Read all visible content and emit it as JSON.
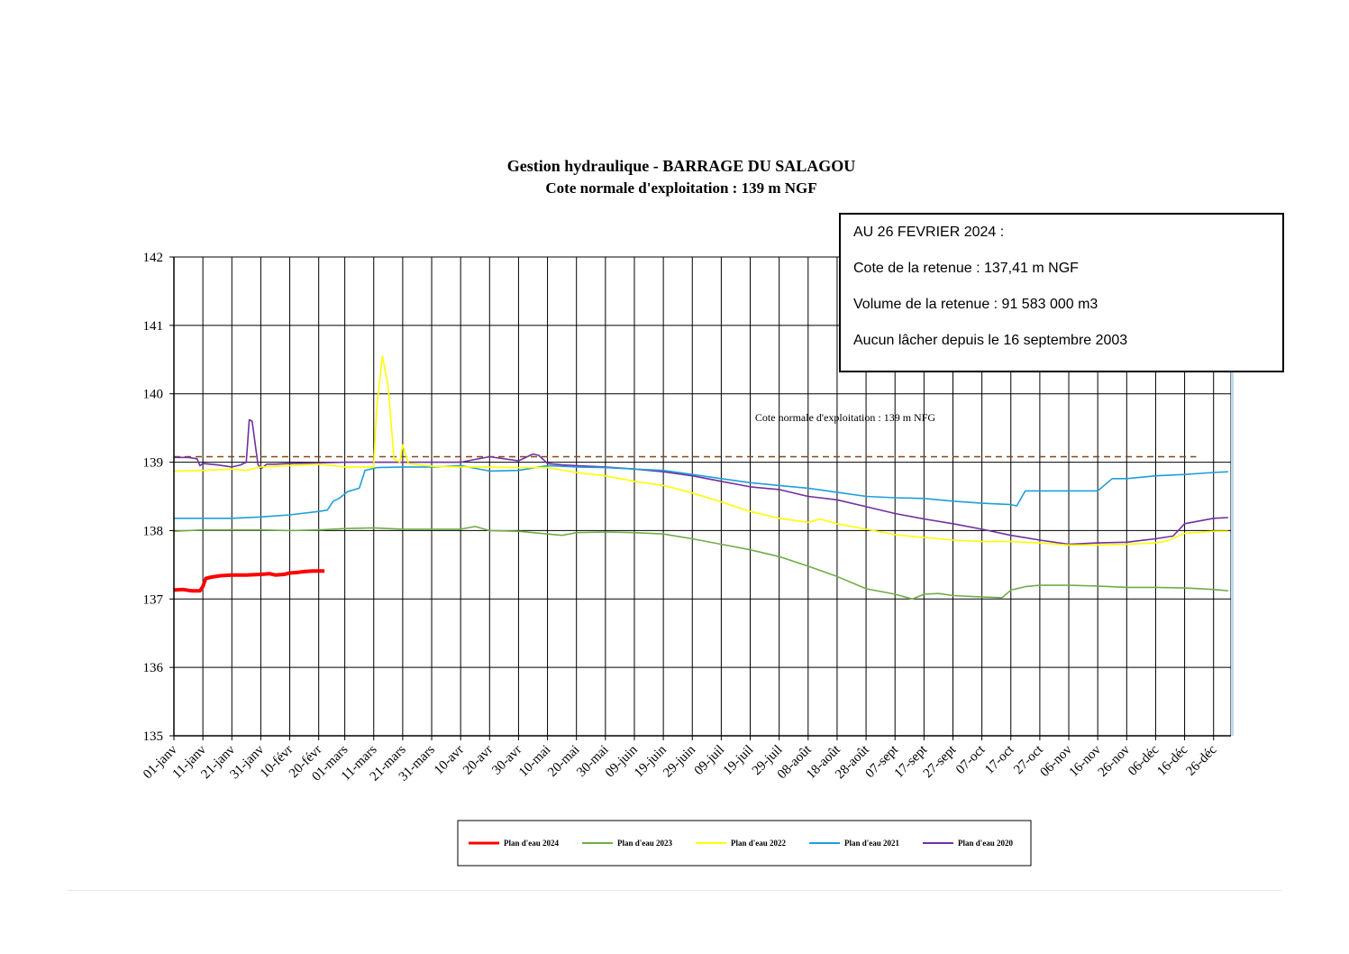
{
  "chart_data": {
    "type": "line",
    "title": "Gestion hydraulique - BARRAGE DU SALAGOU",
    "subtitle": "Cote normale d'exploitation : 139 m NGF",
    "xlabel": "",
    "ylabel": "",
    "ylim": [
      135,
      142
    ],
    "yticks": [
      "135",
      "136",
      "137",
      "138",
      "139",
      "140",
      "141",
      "142"
    ],
    "x_day_range": [
      0,
      365
    ],
    "xticks": [
      {
        "day": 0,
        "label": "01-janv"
      },
      {
        "day": 10,
        "label": "11-janv"
      },
      {
        "day": 20,
        "label": "21-janv"
      },
      {
        "day": 30,
        "label": "31-janv"
      },
      {
        "day": 40,
        "label": "10-févr"
      },
      {
        "day": 50,
        "label": "20-févr"
      },
      {
        "day": 59,
        "label": "01-mars"
      },
      {
        "day": 69,
        "label": "11-mars"
      },
      {
        "day": 79,
        "label": "21-mars"
      },
      {
        "day": 89,
        "label": "31-mars"
      },
      {
        "day": 99,
        "label": "10-avr"
      },
      {
        "day": 109,
        "label": "20-avr"
      },
      {
        "day": 119,
        "label": "30-avr"
      },
      {
        "day": 129,
        "label": "10-mai"
      },
      {
        "day": 139,
        "label": "20-mai"
      },
      {
        "day": 149,
        "label": "30-mai"
      },
      {
        "day": 159,
        "label": "09-juin"
      },
      {
        "day": 169,
        "label": "19-juin"
      },
      {
        "day": 179,
        "label": "29-juin"
      },
      {
        "day": 189,
        "label": "09-juil"
      },
      {
        "day": 199,
        "label": "19-juil"
      },
      {
        "day": 209,
        "label": "29-juil"
      },
      {
        "day": 219,
        "label": "08-août"
      },
      {
        "day": 229,
        "label": "18-août"
      },
      {
        "day": 239,
        "label": "28-août"
      },
      {
        "day": 249,
        "label": "07-sept"
      },
      {
        "day": 259,
        "label": "17-sept"
      },
      {
        "day": 269,
        "label": "27-sept"
      },
      {
        "day": 279,
        "label": "07-oct"
      },
      {
        "day": 289,
        "label": "17-oct"
      },
      {
        "day": 299,
        "label": "27-oct"
      },
      {
        "day": 309,
        "label": "06-nov"
      },
      {
        "day": 319,
        "label": "16-nov"
      },
      {
        "day": 329,
        "label": "26-nov"
      },
      {
        "day": 339,
        "label": "06-déc"
      },
      {
        "day": 349,
        "label": "16-déc"
      },
      {
        "day": 359,
        "label": "26-déc"
      }
    ],
    "grid": true,
    "reference_line": {
      "y": 139.08,
      "color": "#8b4513",
      "style": "dashed",
      "label": "Cote normale d'exploitation : 139 m NFG"
    },
    "series": [
      {
        "name": "Plan d'eau 2024",
        "color": "#ff0000",
        "width": 4,
        "x": [
          0,
          3,
          6,
          9,
          10,
          11,
          13,
          16,
          20,
          25,
          30,
          33,
          35,
          38,
          40,
          43,
          45,
          48,
          50,
          52
        ],
        "y": [
          137.13,
          137.14,
          137.12,
          137.12,
          137.18,
          137.3,
          137.32,
          137.34,
          137.35,
          137.35,
          137.36,
          137.37,
          137.35,
          137.36,
          137.38,
          137.39,
          137.4,
          137.41,
          137.41,
          137.41
        ]
      },
      {
        "name": "Plan d'eau 2023",
        "color": "#70ad47",
        "width": 1.6,
        "x": [
          0,
          10,
          20,
          30,
          40,
          50,
          59,
          69,
          79,
          89,
          99,
          104,
          109,
          119,
          129,
          134,
          139,
          149,
          159,
          169,
          179,
          189,
          199,
          209,
          219,
          229,
          239,
          249,
          255,
          259,
          264,
          269,
          279,
          286,
          289,
          294,
          299,
          309,
          319,
          329,
          339,
          349,
          359,
          364
        ],
        "y": [
          137.99,
          138.01,
          138.01,
          138.01,
          138.0,
          138.01,
          138.03,
          138.04,
          138.02,
          138.02,
          138.02,
          138.06,
          138.0,
          137.99,
          137.95,
          137.93,
          137.97,
          137.98,
          137.97,
          137.95,
          137.88,
          137.8,
          137.72,
          137.62,
          137.48,
          137.33,
          137.15,
          137.07,
          137.0,
          137.07,
          137.08,
          137.05,
          137.03,
          137.02,
          137.13,
          137.18,
          137.2,
          137.2,
          137.19,
          137.17,
          137.17,
          137.16,
          137.14,
          137.12
        ]
      },
      {
        "name": "Plan d'eau 2022",
        "color": "#ffff00",
        "width": 1.6,
        "x": [
          0,
          10,
          20,
          25,
          30,
          40,
          50,
          55,
          59,
          69,
          70,
          72,
          74,
          76,
          78,
          79,
          81,
          83,
          89,
          99,
          109,
          119,
          129,
          139,
          149,
          159,
          169,
          179,
          189,
          199,
          209,
          219,
          223,
          229,
          239,
          249,
          259,
          269,
          279,
          289,
          299,
          309,
          319,
          329,
          339,
          343,
          349,
          359,
          364
        ],
        "y": [
          138.87,
          138.88,
          138.9,
          138.88,
          138.93,
          138.95,
          138.97,
          138.95,
          138.93,
          138.93,
          139.8,
          140.55,
          140.1,
          139.05,
          139.0,
          139.25,
          138.98,
          138.97,
          138.94,
          138.93,
          138.93,
          138.92,
          138.92,
          138.85,
          138.8,
          138.72,
          138.66,
          138.55,
          138.42,
          138.28,
          138.18,
          138.12,
          138.17,
          138.1,
          138.02,
          137.94,
          137.9,
          137.86,
          137.84,
          137.84,
          137.82,
          137.79,
          137.79,
          137.8,
          137.82,
          137.85,
          137.96,
          137.99,
          137.99
        ]
      },
      {
        "name": "Plan d'eau 2021",
        "color": "#1e9fdb",
        "width": 1.6,
        "x": [
          0,
          10,
          20,
          30,
          40,
          50,
          53,
          55,
          57,
          60,
          64,
          66,
          70,
          79,
          89,
          99,
          109,
          119,
          129,
          139,
          149,
          159,
          169,
          179,
          189,
          199,
          209,
          219,
          229,
          239,
          249,
          259,
          269,
          279,
          289,
          291,
          294,
          299,
          309,
          319,
          324,
          329,
          339,
          349,
          359,
          364
        ],
        "y": [
          138.18,
          138.18,
          138.18,
          138.2,
          138.23,
          138.28,
          138.3,
          138.43,
          138.47,
          138.57,
          138.62,
          138.88,
          138.92,
          138.93,
          138.93,
          138.95,
          138.87,
          138.88,
          138.95,
          138.93,
          138.92,
          138.9,
          138.88,
          138.82,
          138.76,
          138.7,
          138.66,
          138.62,
          138.56,
          138.5,
          138.48,
          138.47,
          138.43,
          138.4,
          138.38,
          138.36,
          138.58,
          138.58,
          138.58,
          138.58,
          138.76,
          138.76,
          138.8,
          138.82,
          138.85,
          138.86
        ]
      },
      {
        "name": "Plan d'eau 2020",
        "color": "#7030a0",
        "width": 1.6,
        "x": [
          0,
          5,
          8,
          9,
          10,
          15,
          20,
          23,
          25,
          26,
          27,
          29,
          30,
          32,
          35,
          40,
          50,
          59,
          69,
          79,
          89,
          99,
          109,
          119,
          124,
          126,
          129,
          134,
          139,
          149,
          159,
          169,
          179,
          189,
          199,
          209,
          219,
          229,
          239,
          249,
          259,
          269,
          279,
          289,
          299,
          309,
          319,
          329,
          339,
          345,
          349,
          359,
          364
        ],
        "y": [
          139.07,
          139.07,
          139.05,
          138.95,
          138.98,
          138.96,
          138.93,
          138.96,
          139.0,
          139.62,
          139.6,
          138.97,
          138.9,
          138.97,
          138.97,
          138.98,
          138.99,
          139.0,
          139.0,
          139.0,
          139.0,
          139.0,
          139.08,
          139.02,
          139.12,
          139.1,
          138.98,
          138.96,
          138.95,
          138.93,
          138.9,
          138.86,
          138.8,
          138.72,
          138.64,
          138.6,
          138.5,
          138.45,
          138.35,
          138.25,
          138.17,
          138.1,
          138.02,
          137.93,
          137.86,
          137.8,
          137.82,
          137.83,
          137.88,
          137.92,
          138.1,
          138.18,
          138.19
        ]
      }
    ]
  },
  "infobox": {
    "line1": "AU 26 FEVRIER 2024 :",
    "line2": "Cote de la retenue : 137,41 m NGF",
    "line3": "Volume de la retenue : 91 583 000 m3",
    "line4": "Aucun lâcher depuis le 16 septembre 2003"
  }
}
